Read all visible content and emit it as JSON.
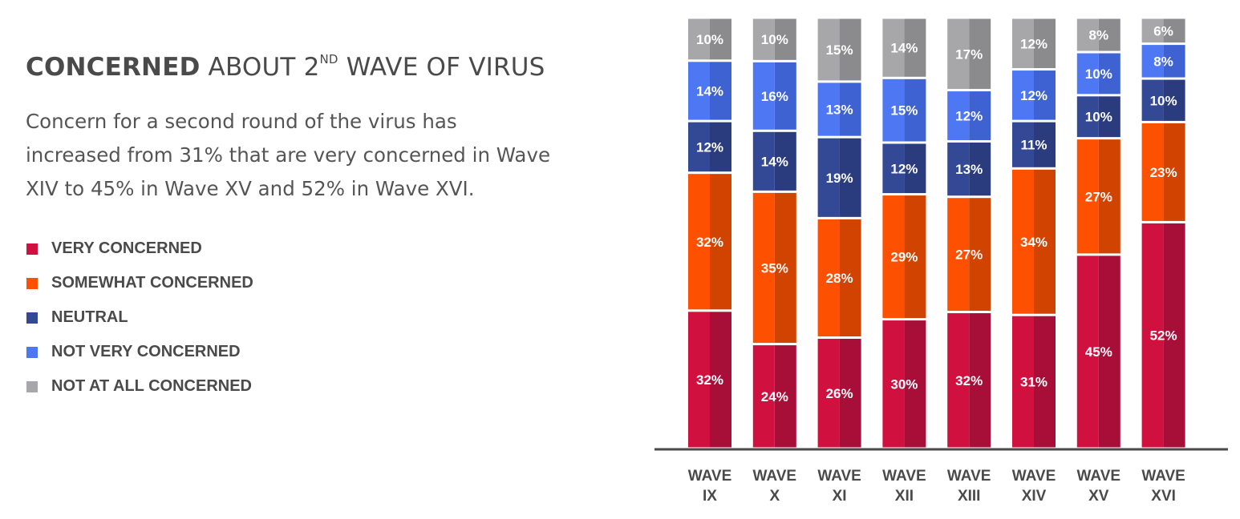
{
  "header": {
    "title_bold": "CONCERNED",
    "title_pre": " ABOUT 2",
    "title_sup": "ND",
    "title_post": " WAVE OF VIRUS",
    "description": "Concern for a second round of the virus has increased from 31% that are very concerned in Wave XIV to 45% in Wave XV and 52% in Wave XVI."
  },
  "legend": [
    {
      "label": "VERY CONCERNED",
      "color": "#d0113f"
    },
    {
      "label": "SOMEWHAT CONCERNED",
      "color": "#fd5001"
    },
    {
      "label": "NEUTRAL",
      "color": "#344996"
    },
    {
      "label": "NOT VERY CONCERNED",
      "color": "#4e77f4"
    },
    {
      "label": "NOT AT ALL CONCERNED",
      "color": "#a7a7aa"
    }
  ],
  "chart_data": {
    "type": "bar",
    "stacked": true,
    "categories": [
      "WAVE IX",
      "WAVE X",
      "WAVE XI",
      "WAVE XII",
      "WAVE XIII",
      "WAVE XIV",
      "WAVE XV",
      "WAVE XVI"
    ],
    "category_lines": [
      [
        "WAVE",
        "IX"
      ],
      [
        "WAVE",
        "X"
      ],
      [
        "WAVE",
        "XI"
      ],
      [
        "WAVE",
        "XII"
      ],
      [
        "WAVE",
        "XIII"
      ],
      [
        "WAVE",
        "XIV"
      ],
      [
        "WAVE",
        "XV"
      ],
      [
        "WAVE",
        "XVI"
      ]
    ],
    "series": [
      {
        "name": "VERY CONCERNED",
        "color": "#d0113f",
        "shade": "#a80f38",
        "values": [
          32,
          24,
          26,
          30,
          32,
          31,
          45,
          52
        ]
      },
      {
        "name": "SOMEWHAT CONCERNED",
        "color": "#fd5001",
        "shade": "#d14300",
        "values": [
          32,
          35,
          28,
          29,
          27,
          34,
          27,
          23
        ]
      },
      {
        "name": "NEUTRAL",
        "color": "#344996",
        "shade": "#2a3c7e",
        "values": [
          12,
          14,
          19,
          12,
          13,
          11,
          10,
          10
        ]
      },
      {
        "name": "NOT VERY CONCERNED",
        "color": "#4e77f4",
        "shade": "#3e62d2",
        "values": [
          14,
          16,
          13,
          15,
          12,
          12,
          10,
          8
        ]
      },
      {
        "name": "NOT AT ALL CONCERNED",
        "color": "#a7a7aa",
        "shade": "#8b8b8e",
        "values": [
          10,
          10,
          15,
          14,
          17,
          12,
          8,
          6
        ]
      }
    ],
    "value_suffix": "%",
    "ylim": [
      0,
      100
    ],
    "grid": false,
    "legend_position": "left"
  }
}
